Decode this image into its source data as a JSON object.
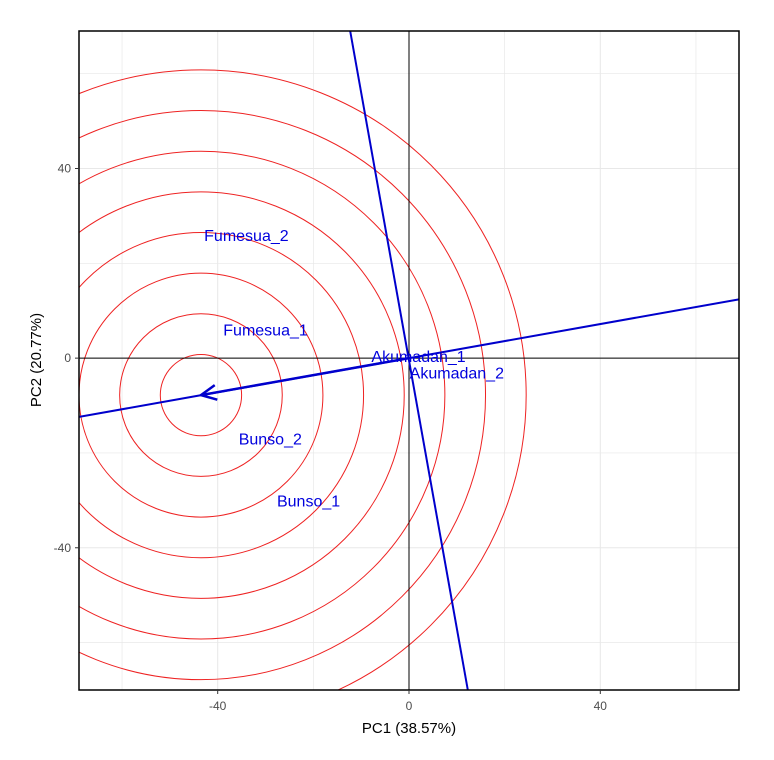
{
  "chart_data": {
    "type": "scatter",
    "subtype": "GGE biplot (which-won-where / comparison view)",
    "xlabel": "PC1 (38.57%)",
    "ylabel": "PC2 (20.77%)",
    "xlim": [
      -69,
      69
    ],
    "ylim": [
      -70,
      69
    ],
    "x_ticks": [
      -40,
      0,
      40
    ],
    "x_tick_labels": [
      "-40",
      "0",
      "40"
    ],
    "y_ticks": [
      -40,
      0,
      40
    ],
    "y_tick_labels": [
      "-40",
      "0",
      "40"
    ],
    "grid": true,
    "points": [
      {
        "label": "Akumadan_1",
        "x": 2,
        "y": 0.5
      },
      {
        "label": "Akumadan_2",
        "x": 10,
        "y": -3
      },
      {
        "label": "Fumesua_1",
        "x": -30,
        "y": 6
      },
      {
        "label": "Fumesua_2",
        "x": -34,
        "y": 26
      },
      {
        "label": "Bunso_2",
        "x": -29,
        "y": -17
      },
      {
        "label": "Bunso_1",
        "x": -21,
        "y": -30
      }
    ],
    "average_axis": {
      "start": [
        -69,
        -12.4
      ],
      "end": [
        69,
        12.4
      ]
    },
    "perpendicular_axis": {
      "start": [
        -12.3,
        69
      ],
      "end": [
        12.3,
        -70
      ]
    },
    "ideal_arrow": {
      "from": [
        0,
        0
      ],
      "to": [
        -43.5,
        -7.8
      ]
    },
    "concentric_circles": {
      "center": [
        -43.5,
        -7.8
      ],
      "radii": [
        8.5,
        17,
        25.5,
        34,
        42.5,
        51,
        59.5,
        68
      ]
    },
    "colors": {
      "labels": "#0000dd",
      "axes": "#0000cc",
      "circles": "#ee2222",
      "reference_lines": "#000000",
      "grid": "#e8e8e8"
    }
  }
}
